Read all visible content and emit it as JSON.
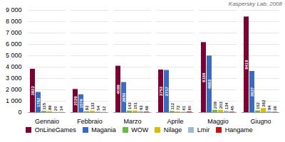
{
  "chart_data": {
    "type": "bar",
    "categories": [
      "Gennaio",
      "Febbraio",
      "Marzo",
      "Aprile",
      "Maggio",
      "Giugno"
    ],
    "series": [
      {
        "name": "OnLineGames",
        "color": "#7B0033",
        "values": [
          3822,
          2039,
          4086,
          3753,
          6166,
          8419
        ]
      },
      {
        "name": "Magania",
        "color": "#3B6BBF",
        "values": [
          1782,
          1576,
          2650,
          3717,
          4983,
          3627
        ]
      },
      {
        "name": "WOW",
        "color": "#66BB44",
        "values": [
          115,
          82,
          143,
          112,
          209,
          152
        ]
      },
      {
        "name": "Nilage",
        "color": "#DDBB00",
        "values": [
          89,
          133,
          151,
          72,
          203,
          362
        ]
      },
      {
        "name": "Lmir",
        "color": "#99BBCC",
        "values": [
          20,
          54,
          93,
          41,
          134,
          94
        ]
      },
      {
        "name": "Hangame",
        "color": "#CC1111",
        "values": [
          14,
          12,
          48,
          60,
          45,
          36
        ]
      }
    ],
    "ylim": [
      0,
      9000
    ],
    "yticks": [
      0,
      {
        "value": 1000,
        "label": "1 000"
      },
      {
        "value": 2000,
        "label": "2 000"
      },
      {
        "value": 3000,
        "label": "3 000"
      },
      {
        "value": 4000,
        "label": "4 000"
      },
      {
        "value": 5000,
        "label": "5 000"
      },
      {
        "value": 6000,
        "label": "6 000"
      },
      {
        "value": 7000,
        "label": "7 000"
      },
      {
        "value": 8000,
        "label": "8 000"
      },
      {
        "value": 9000,
        "label": "9 000"
      }
    ],
    "grid": true,
    "legend": "bottom",
    "data_labels": true,
    "annotations": [
      "Kaspersky Lab, 2008"
    ]
  }
}
